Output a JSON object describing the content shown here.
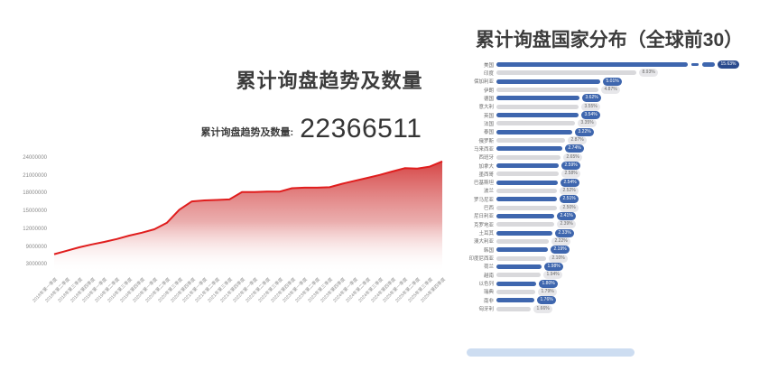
{
  "left_panel": {
    "title": "累计询盘趋势及数量",
    "stat_label": "累计询盘趋势及数量:",
    "stat_value": "22366511"
  },
  "right_panel": {
    "title": "累计询盘国家分布（全球前30）"
  },
  "colors": {
    "line_red": "#e01d1d",
    "area_red_top": "#d43c3c",
    "bar_blue": "#3e66ae",
    "bar_gray": "#d9d9dc",
    "badge_dark_blue": "#2a4a8d",
    "badge_gray_bg": "#e7e7ea",
    "scroll_blue": "#cdddf1"
  },
  "chart_data": [
    {
      "type": "area",
      "title": "累计询盘趋势及数量",
      "xlabel": "",
      "ylabel": "",
      "ylim": [
        0,
        24000000
      ],
      "grid": false,
      "legend": "none",
      "yticks": [
        "24000000",
        "21000000",
        "18000000",
        "15000000",
        "12000000",
        "9000000",
        "3000000"
      ],
      "x": [
        "2018年第一季度",
        "2018年第二季度",
        "2018年第三季度",
        "2018年第四季度",
        "2019年第一季度",
        "2019年第二季度",
        "2019年第三季度",
        "2019年第四季度",
        "2020年第一季度",
        "2020年第二季度",
        "2020年第三季度",
        "2020年第四季度",
        "2021年第一季度",
        "2021年第二季度",
        "2021年第三季度",
        "2021年第四季度",
        "2022年第一季度",
        "2022年第二季度",
        "2022年第三季度",
        "2022年第四季度",
        "2023年第一季度",
        "2023年第二季度",
        "2023年第三季度",
        "2023年第四季度",
        "2024年第一季度",
        "2024年第二季度",
        "2024年第三季度",
        "2024年第四季度",
        "2025年第一季度",
        "2025年第二季度",
        "2025年第三季度",
        "2025年第四季度"
      ],
      "values": [
        3400000,
        4100000,
        4800000,
        5400000,
        5900000,
        6500000,
        7200000,
        7800000,
        8500000,
        9800000,
        12500000,
        14200000,
        14400000,
        14500000,
        14600000,
        16100000,
        16100000,
        16200000,
        16200000,
        16900000,
        17000000,
        17000000,
        17100000,
        17800000,
        18400000,
        19000000,
        19600000,
        20300000,
        21000000,
        20900000,
        21300000,
        22366511
      ]
    },
    {
      "type": "bar",
      "orientation": "horizontal",
      "title": "累计询盘国家分布（全球前30）",
      "legend": "none",
      "categories": [
        "美国",
        "印度",
        "保加利亚",
        "伊朗",
        "德国",
        "意大利",
        "英国",
        "法国",
        "泰国",
        "俄罗斯",
        "马来西亚",
        "西班牙",
        "加拿大",
        "墨西哥",
        "巴基斯坦",
        "波兰",
        "罗马尼亚",
        "巴西",
        "尼日利亚",
        "克罗地亚",
        "土耳其",
        "澳大利亚",
        "韩国",
        "印度尼西亚",
        "荷兰",
        "越南",
        "以色列",
        "瑞典",
        "南非",
        "匈牙利"
      ],
      "values": [
        "15.63%",
        "8.93%",
        "5.01%",
        "4.87%",
        "3.62%",
        "3.55%",
        "3.54%",
        "3.35%",
        "3.22%",
        "2.87%",
        "2.74%",
        "2.65%",
        "2.59%",
        "2.58%",
        "2.54%",
        "2.52%",
        "2.51%",
        "2.50%",
        "2.41%",
        "2.39%",
        "2.33%",
        "2.22%",
        "2.19%",
        "2.10%",
        "1.98%",
        "1.94%",
        "1.80%",
        "1.79%",
        "1.76%",
        "1.66%"
      ]
    }
  ]
}
